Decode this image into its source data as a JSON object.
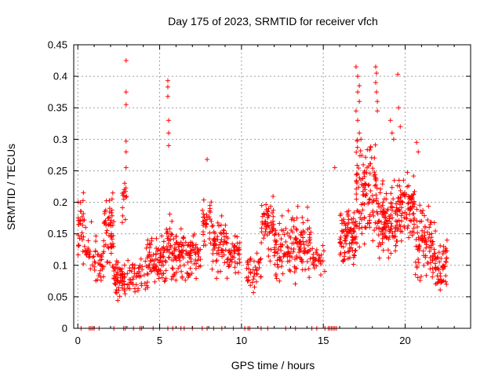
{
  "chart_data": {
    "type": "scatter",
    "title": "Day 175 of 2023, SRMTID for receiver vfch",
    "xlabel": "GPS time / hours",
    "ylabel": "SRMTID / TECUs",
    "xlim": [
      -0.25,
      24.0
    ],
    "ylim": [
      0,
      0.45
    ],
    "xticks": [
      0,
      5,
      10,
      15,
      20
    ],
    "xtick_labels": [
      "0",
      "5",
      "10",
      "15",
      "20"
    ],
    "yticks": [
      0,
      0.05,
      0.1,
      0.15,
      0.2,
      0.25,
      0.3,
      0.35,
      0.4,
      0.45
    ],
    "ytick_labels": [
      "0",
      "0.05",
      "0.1",
      "0.15",
      "0.2",
      "0.25",
      "0.3",
      "0.35",
      "0.4",
      "0.45"
    ],
    "grid": true,
    "marker": "+",
    "color": "#ff0000",
    "clusters": [
      {
        "x_range": [
          0.0,
          0.4
        ],
        "y_range": [
          0.08,
          0.245
        ],
        "count": 30
      },
      {
        "x_range": [
          0.4,
          0.9
        ],
        "y_range": [
          0.05,
          0.2
        ],
        "count": 20
      },
      {
        "x_range": [
          0.9,
          1.6
        ],
        "y_range": [
          0.06,
          0.16
        ],
        "count": 35
      },
      {
        "x_range": [
          1.6,
          2.2
        ],
        "y_range": [
          0.07,
          0.24
        ],
        "count": 55
      },
      {
        "x_range": [
          2.2,
          2.9
        ],
        "y_range": [
          0.04,
          0.12
        ],
        "count": 60
      },
      {
        "x_range": [
          2.7,
          3.0
        ],
        "y_range": [
          0.15,
          0.26
        ],
        "count": 15
      },
      {
        "x_range": [
          3.0,
          4.1
        ],
        "y_range": [
          0.05,
          0.12
        ],
        "count": 45
      },
      {
        "x_range": [
          4.1,
          5.4
        ],
        "y_range": [
          0.04,
          0.17
        ],
        "count": 90
      },
      {
        "x_range": [
          5.4,
          5.8
        ],
        "y_range": [
          0.05,
          0.2
        ],
        "count": 30
      },
      {
        "x_range": [
          5.8,
          7.5
        ],
        "y_range": [
          0.06,
          0.17
        ],
        "count": 110
      },
      {
        "x_range": [
          7.6,
          8.2
        ],
        "y_range": [
          0.1,
          0.24
        ],
        "count": 35
      },
      {
        "x_range": [
          8.2,
          9.2
        ],
        "y_range": [
          0.07,
          0.19
        ],
        "count": 65
      },
      {
        "x_range": [
          9.2,
          9.9
        ],
        "y_range": [
          0.06,
          0.17
        ],
        "count": 40
      },
      {
        "x_range": [
          10.3,
          11.2
        ],
        "y_range": [
          0.05,
          0.13
        ],
        "count": 40
      },
      {
        "x_range": [
          11.2,
          12.0
        ],
        "y_range": [
          0.1,
          0.23
        ],
        "count": 55
      },
      {
        "x_range": [
          12.0,
          13.4
        ],
        "y_range": [
          0.06,
          0.2
        ],
        "count": 95
      },
      {
        "x_range": [
          13.4,
          14.3
        ],
        "y_range": [
          0.07,
          0.2
        ],
        "count": 55
      },
      {
        "x_range": [
          14.3,
          15.2
        ],
        "y_range": [
          0.08,
          0.14
        ],
        "count": 30
      },
      {
        "x_range": [
          16.0,
          17.0
        ],
        "y_range": [
          0.08,
          0.21
        ],
        "count": 95
      },
      {
        "x_range": [
          17.0,
          18.3
        ],
        "y_range": [
          0.1,
          0.33
        ],
        "count": 120
      },
      {
        "x_range": [
          18.3,
          19.5
        ],
        "y_range": [
          0.09,
          0.25
        ],
        "count": 110
      },
      {
        "x_range": [
          19.5,
          20.6
        ],
        "y_range": [
          0.12,
          0.26
        ],
        "count": 95
      },
      {
        "x_range": [
          20.6,
          21.8
        ],
        "y_range": [
          0.05,
          0.22
        ],
        "count": 90
      },
      {
        "x_range": [
          21.8,
          22.6
        ],
        "y_range": [
          0.05,
          0.16
        ],
        "count": 60
      }
    ],
    "outliers": [
      [
        2.95,
        0.425
      ],
      [
        2.95,
        0.375
      ],
      [
        2.95,
        0.355
      ],
      [
        2.95,
        0.297
      ],
      [
        2.95,
        0.28
      ],
      [
        2.95,
        0.255
      ],
      [
        5.5,
        0.393
      ],
      [
        5.5,
        0.383
      ],
      [
        5.5,
        0.368
      ],
      [
        5.55,
        0.33
      ],
      [
        5.55,
        0.31
      ],
      [
        5.55,
        0.29
      ],
      [
        7.9,
        0.268
      ],
      [
        15.7,
        0.255
      ],
      [
        17.0,
        0.415
      ],
      [
        17.1,
        0.4
      ],
      [
        17.2,
        0.385
      ],
      [
        17.1,
        0.375
      ],
      [
        17.2,
        0.36
      ],
      [
        17.0,
        0.345
      ],
      [
        17.1,
        0.33
      ],
      [
        17.2,
        0.31
      ],
      [
        17.3,
        0.3
      ],
      [
        18.2,
        0.415
      ],
      [
        18.25,
        0.405
      ],
      [
        18.2,
        0.39
      ],
      [
        18.25,
        0.375
      ],
      [
        18.3,
        0.36
      ],
      [
        18.3,
        0.345
      ],
      [
        19.1,
        0.33
      ],
      [
        19.2,
        0.31
      ],
      [
        19.3,
        0.3
      ],
      [
        19.6,
        0.35
      ],
      [
        19.55,
        0.403
      ],
      [
        19.7,
        0.32
      ],
      [
        20.7,
        0.295
      ],
      [
        20.8,
        0.28
      ]
    ],
    "zero_points_x": [
      0.2,
      0.7,
      0.8,
      0.9,
      1.0,
      1.3,
      2.2,
      2.8,
      2.9,
      3.4,
      3.8,
      3.9,
      4.6,
      5.0,
      5.5,
      5.8,
      6.3,
      6.5,
      7.0,
      7.6,
      7.9,
      8.3,
      8.8,
      9.5,
      10.2,
      10.4,
      10.5,
      11.2,
      11.6,
      12.7,
      13.3,
      14.3,
      14.6,
      15.1,
      15.3,
      15.4,
      15.5,
      15.6,
      15.7,
      15.8
    ]
  }
}
